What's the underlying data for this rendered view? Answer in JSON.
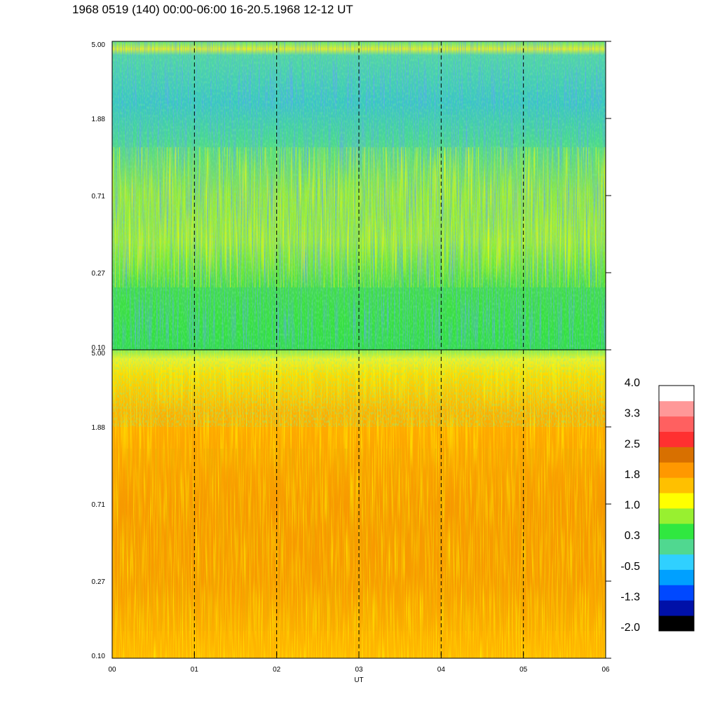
{
  "title": "1968 0519 (140) 00:00-06:00 16-20.5.1968  12-12 UT",
  "chart_data": {
    "type": "heatmap",
    "panels": [
      {
        "name": "upper",
        "y_ticks": [
          "5.00",
          "1.88",
          "0.71",
          "0.27",
          "0.10"
        ],
        "dominant_levels": [
          "cyan-green",
          "green",
          "yellow-green",
          "blue"
        ]
      },
      {
        "name": "lower",
        "y_ticks": [
          "5.00",
          "1.88",
          "0.71",
          "0.27",
          "0.10"
        ],
        "dominant_levels": [
          "orange",
          "amber",
          "yellow",
          "dark-orange"
        ]
      }
    ],
    "x_ticks": [
      "00",
      "01",
      "02",
      "03",
      "04",
      "05",
      "06"
    ],
    "xlabel": "UT",
    "dashed_vertical_lines_at": [
      "01",
      "02",
      "03",
      "04",
      "05"
    ],
    "colorbar": {
      "labels": [
        "4.0",
        "3.3",
        "2.5",
        "1.8",
        "1.0",
        "0.3",
        "-0.5",
        "-1.3",
        "-2.0"
      ],
      "range": [
        -2.0,
        4.0
      ],
      "colors": [
        "#000000",
        "#0010a8",
        "#0048ff",
        "#00a0ff",
        "#30d0ff",
        "#50d890",
        "#30e840",
        "#98f030",
        "#ffff00",
        "#ffc000",
        "#ff9800",
        "#d87000",
        "#ff3030",
        "#ff6060",
        "#ff9898",
        "#ffffff"
      ]
    }
  }
}
